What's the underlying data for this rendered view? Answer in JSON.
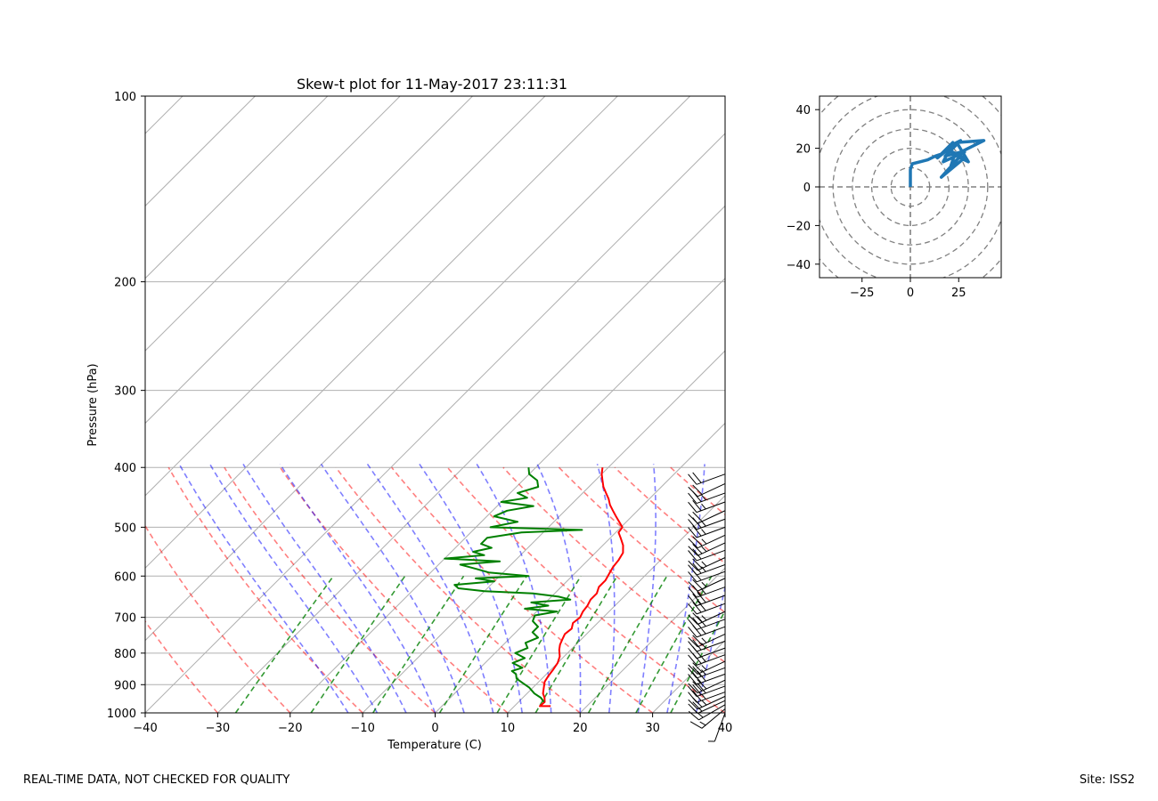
{
  "footer": {
    "left": "REAL-TIME DATA, NOT CHECKED FOR QUALITY",
    "right": "Site: ISS2"
  },
  "chart_data": [
    {
      "type": "line",
      "subtype": "skew-t log-p",
      "title": "Skew-t plot for 11-May-2017 23:11:31",
      "xlabel": "Temperature (C)",
      "ylabel": "Pressure (hPa)",
      "xlim": [
        -40,
        40
      ],
      "ylim": [
        1000,
        100
      ],
      "yscale": "log",
      "skew_degrees": 45,
      "xticks": [
        -40,
        -30,
        -20,
        -10,
        0,
        10,
        20,
        30,
        40
      ],
      "yticks": [
        100,
        200,
        300,
        400,
        500,
        600,
        700,
        800,
        900,
        1000
      ],
      "grid": true,
      "series": [
        {
          "role": "temperature",
          "color": "#ff0000",
          "pressure": [
            975,
            975,
            960,
            945,
            930,
            910,
            890,
            870,
            850,
            830,
            810,
            790,
            775,
            760,
            745,
            730,
            715,
            700,
            685,
            670,
            655,
            640,
            625,
            610,
            595,
            580,
            565,
            550,
            535,
            520,
            510,
            500,
            490,
            480,
            470,
            460,
            450,
            440,
            430,
            420,
            410,
            400
          ],
          "temperature": [
            15.0,
            13.5,
            13.6,
            13.0,
            12.2,
            11.5,
            10.8,
            10.5,
            10.3,
            10.0,
            9.4,
            8.4,
            7.8,
            7.4,
            7.0,
            7.2,
            6.6,
            6.8,
            6.4,
            6.2,
            5.8,
            5.8,
            5.2,
            5.2,
            4.8,
            4.4,
            4.2,
            3.8,
            2.8,
            1.4,
            0.4,
            0.2,
            -1.0,
            -2.2,
            -3.4,
            -4.6,
            -5.6,
            -6.8,
            -8.0,
            -9.0,
            -10.0,
            -10.8
          ]
        },
        {
          "role": "dewpoint",
          "color": "#008000",
          "pressure": [
            960,
            945,
            930,
            910,
            895,
            880,
            865,
            855,
            845,
            830,
            815,
            800,
            785,
            770,
            755,
            740,
            725,
            710,
            695,
            685,
            678,
            670,
            662,
            655,
            648,
            640,
            635,
            628,
            620,
            612,
            605,
            600,
            592,
            585,
            575,
            568,
            562,
            555,
            548,
            540,
            532,
            520,
            510,
            505,
            500,
            490,
            480,
            470,
            462,
            455,
            448,
            440,
            430,
            420,
            410,
            400
          ],
          "temperature": [
            13.5,
            12.5,
            11.0,
            9.5,
            8.0,
            6.5,
            5.8,
            4.8,
            5.8,
            3.8,
            4.8,
            2.8,
            3.8,
            2.8,
            3.8,
            2.3,
            2.3,
            0.8,
            0.3,
            2.8,
            -2.0,
            0.8,
            -2.0,
            3.0,
            1.0,
            -3.0,
            -10.0,
            -14.0,
            -15.0,
            -10.0,
            -13.0,
            -6.0,
            -12.0,
            -14.0,
            -17.0,
            -12.0,
            -20.0,
            -15.0,
            -17.0,
            -15.0,
            -17.0,
            -17.0,
            -13.0,
            -5.0,
            -18.0,
            -15.0,
            -19.0,
            -18.0,
            -15.0,
            -20.0,
            -17.0,
            -19.0,
            -17.0,
            -18.0,
            -20.0,
            -21.0
          ]
        }
      ],
      "background_lines": {
        "isotherms": {
          "color": "#b0b0b0"
        },
        "dry_adiabats": {
          "color": "#ff0000",
          "style": "dashed"
        },
        "moist_adiabats": {
          "color": "#0000ff",
          "style": "dashed"
        },
        "mixing_ratio": {
          "color": "#008000",
          "style": "dashed"
        }
      },
      "wind_barbs": {
        "color": "#000000",
        "pressure": [
          1000,
          985,
          970,
          955,
          940,
          925,
          905,
          885,
          865,
          845,
          825,
          805,
          785,
          765,
          745,
          725,
          705,
          685,
          665,
          645,
          625,
          605,
          590,
          575,
          560,
          545,
          530,
          515,
          500,
          485,
          470,
          455,
          440,
          425,
          410
        ],
        "speed_kt": [
          5,
          15,
          20,
          20,
          25,
          25,
          30,
          30,
          30,
          25,
          25,
          25,
          20,
          25,
          25,
          25,
          30,
          25,
          30,
          30,
          25,
          25,
          20,
          25,
          25,
          20,
          25,
          25,
          25,
          25,
          20,
          25,
          25,
          20,
          20
        ],
        "direction_deg": [
          200,
          230,
          240,
          245,
          245,
          250,
          250,
          245,
          250,
          250,
          245,
          250,
          250,
          250,
          245,
          250,
          250,
          245,
          250,
          250,
          250,
          245,
          250,
          250,
          245,
          250,
          245,
          245,
          250,
          250,
          245,
          250,
          250,
          245,
          250
        ]
      }
    },
    {
      "type": "line",
      "subtype": "hodograph",
      "xlim": [
        -47,
        47
      ],
      "ylim": [
        -47,
        47
      ],
      "xticks": [
        -25,
        0,
        25
      ],
      "yticks": [
        -40,
        -20,
        0,
        20,
        40
      ],
      "rings": [
        10,
        20,
        30,
        40,
        50,
        60
      ],
      "grid": true,
      "series": [
        {
          "color": "#1f77b4",
          "u": [
            0,
            0,
            0,
            1,
            5,
            9,
            13,
            16,
            14,
            19,
            22,
            14,
            22,
            26,
            18,
            26,
            38,
            24,
            30,
            26,
            20,
            28,
            16,
            25,
            21,
            23,
            28,
            17,
            21
          ],
          "v": [
            0,
            4,
            9,
            12,
            13,
            14,
            16,
            17,
            15,
            19,
            23,
            15,
            22,
            24,
            16,
            18,
            24,
            23,
            13,
            15,
            19,
            15,
            5,
            15,
            11,
            17,
            18,
            13,
            21
          ]
        }
      ]
    }
  ]
}
